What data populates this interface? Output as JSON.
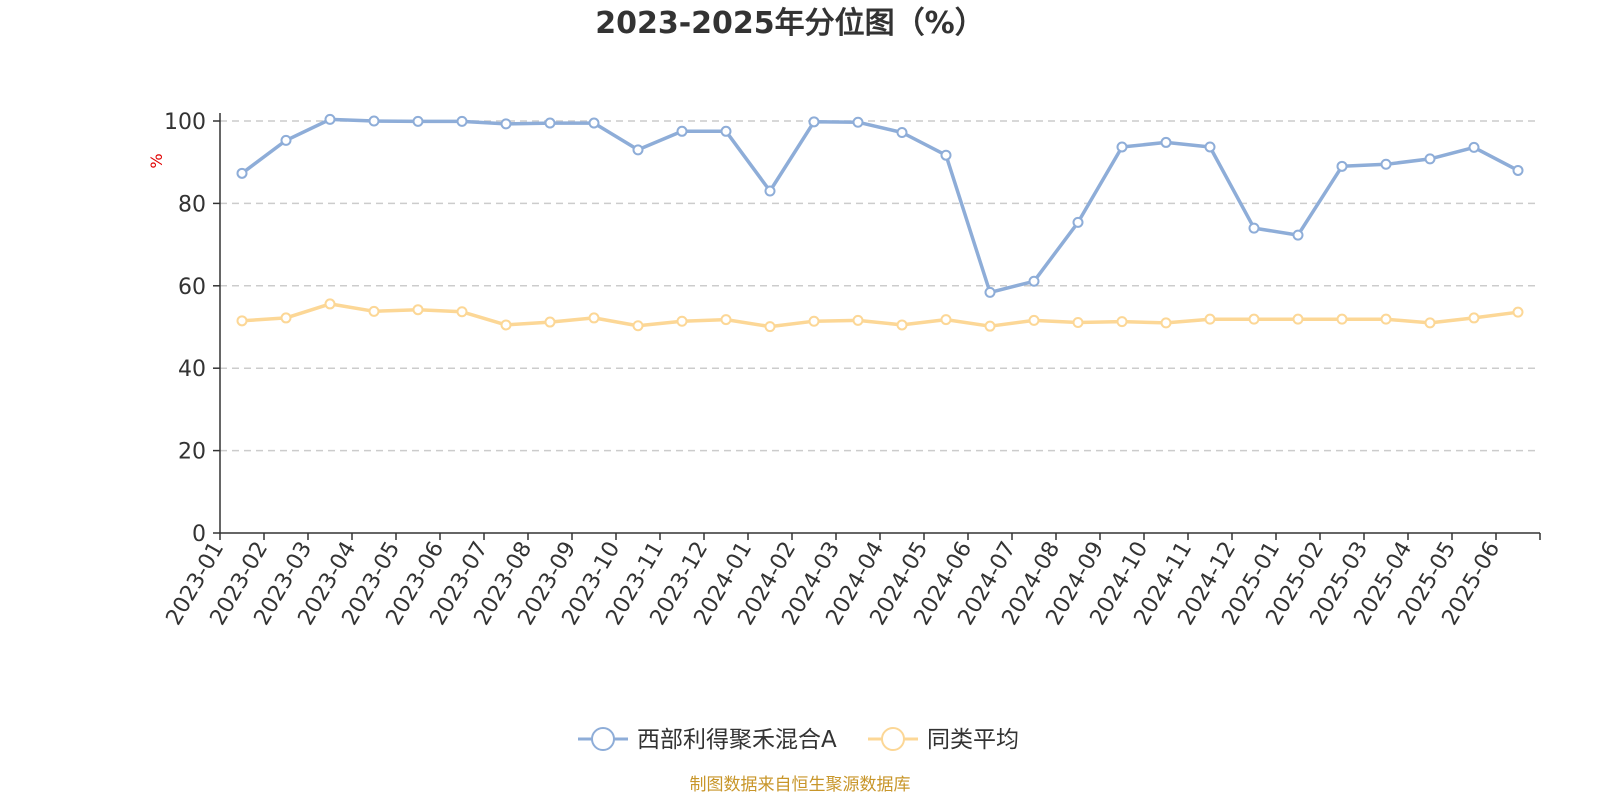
{
  "chart_data": {
    "type": "line",
    "title": "2023-2025年分位图（%）",
    "ylabel": "%",
    "xlabel": "",
    "ylim": [
      0,
      100
    ],
    "yticks": [
      0,
      20,
      40,
      60,
      80,
      100
    ],
    "grid": true,
    "legend_position": "bottom-center",
    "categories": [
      "2023-01",
      "2023-02",
      "2023-03",
      "2023-04",
      "2023-05",
      "2023-06",
      "2023-07",
      "2023-08",
      "2023-09",
      "2023-10",
      "2023-11",
      "2023-12",
      "2024-01",
      "2024-02",
      "2024-03",
      "2024-04",
      "2024-05",
      "2024-06",
      "2024-07",
      "2024-08",
      "2024-09",
      "2024-10",
      "2024-11",
      "2024-12",
      "2025-01",
      "2025-02",
      "2025-03",
      "2025-04",
      "2025-05",
      "2025-06"
    ],
    "series": [
      {
        "name": "西部利得聚禾混合A",
        "color": "#8eadd8",
        "values": [
          87.3,
          95.3,
          100.4,
          100.0,
          99.9,
          99.9,
          99.3,
          99.5,
          99.5,
          93.0,
          97.5,
          97.5,
          83.0,
          99.8,
          99.7,
          97.2,
          91.7,
          58.4,
          61.1,
          75.4,
          93.7,
          94.8,
          93.7,
          74.0,
          72.3,
          89.0,
          89.5,
          90.8,
          93.6,
          88.0
        ]
      },
      {
        "name": "同类平均",
        "color": "#fcd796",
        "values": [
          51.5,
          52.2,
          55.6,
          53.8,
          54.2,
          53.7,
          50.5,
          51.2,
          52.2,
          50.3,
          51.4,
          51.8,
          50.1,
          51.4,
          51.6,
          50.5,
          51.8,
          50.2,
          51.6,
          51.1,
          51.3,
          51.0,
          51.9,
          51.9,
          51.9,
          51.9,
          51.9,
          51.0,
          52.2,
          53.6
        ]
      }
    ]
  },
  "footer": {
    "source": "制图数据来自恒生聚源数据库"
  }
}
